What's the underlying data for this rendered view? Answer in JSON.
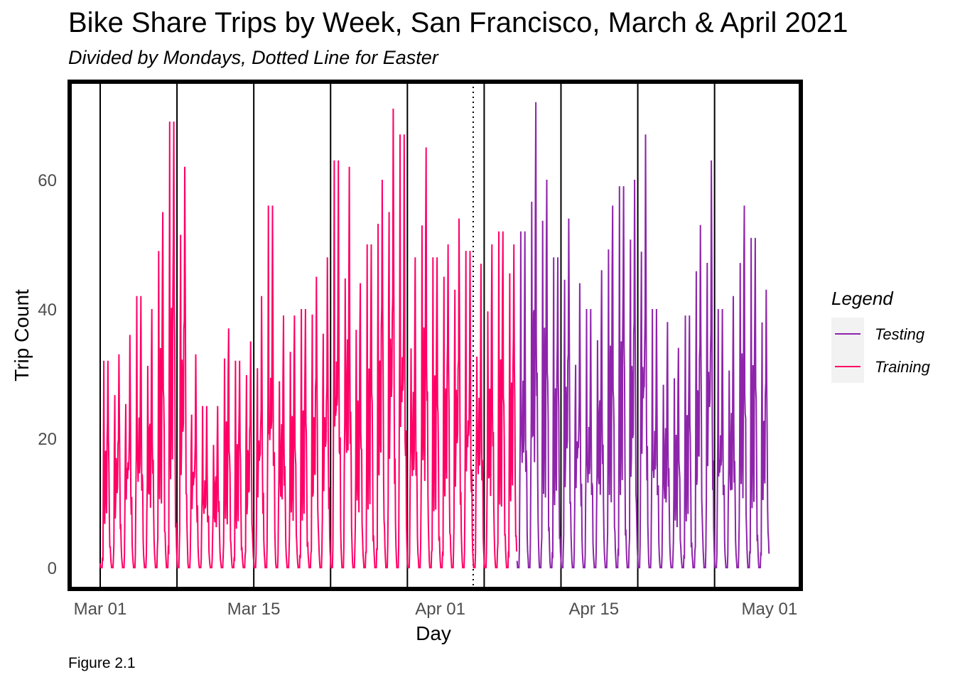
{
  "title": "Bike Share Trips by Week, San Francisco, March & April 2021",
  "subtitle": "Divided by Mondays, Dotted Line for Easter",
  "caption": "Figure 2.1",
  "chart_data": {
    "type": "line",
    "title": "Bike Share Trips by Week, San Francisco, March & April 2021",
    "subtitle": "Divided by Mondays, Dotted Line for Easter",
    "xlabel": "Day",
    "ylabel": "Trip Count",
    "xlim": [
      "2021-03-01",
      "2021-05-01"
    ],
    "ylim": [
      -3,
      75
    ],
    "x_ticks": [
      {
        "date": "2021-03-01",
        "label": "Mar 01"
      },
      {
        "date": "2021-03-15",
        "label": "Mar 15"
      },
      {
        "date": "2021-04-01",
        "label": "Apr 01"
      },
      {
        "date": "2021-04-15",
        "label": "Apr 15"
      },
      {
        "date": "2021-05-01",
        "label": "May 01"
      }
    ],
    "y_ticks": [
      0,
      20,
      40,
      60
    ],
    "grid": false,
    "legend": {
      "title": "Legend",
      "position": "right"
    },
    "vertical_lines": {
      "mondays": [
        "2021-03-01",
        "2021-03-08",
        "2021-03-15",
        "2021-03-22",
        "2021-03-29",
        "2021-04-05",
        "2021-04-12",
        "2021-04-19",
        "2021-04-26"
      ],
      "easter": "2021-04-04"
    },
    "series": [
      {
        "name": "Training",
        "color": "#FF0066",
        "start": "2021-03-01",
        "end": "2021-04-08",
        "daily_peaks": [
          32,
          33,
          36,
          42,
          40,
          55,
          69,
          62,
          33,
          25,
          25,
          37,
          32,
          35,
          42,
          56,
          39,
          39,
          40,
          45,
          48,
          63,
          62,
          44,
          50,
          60,
          71,
          67,
          48,
          65,
          48,
          50,
          54,
          49,
          47,
          50,
          52,
          50
        ],
        "value_range": [
          0,
          71
        ]
      },
      {
        "name": "Testing",
        "color": "#8E24AA",
        "start": "2021-04-08",
        "end": "2021-04-30",
        "daily_peaks": [
          52,
          72,
          60,
          48,
          54,
          44,
          40,
          46,
          56,
          59,
          60,
          67,
          40,
          38,
          34,
          39,
          53,
          63,
          40,
          42,
          56,
          51,
          43
        ],
        "value_range": [
          0,
          72
        ]
      }
    ]
  }
}
